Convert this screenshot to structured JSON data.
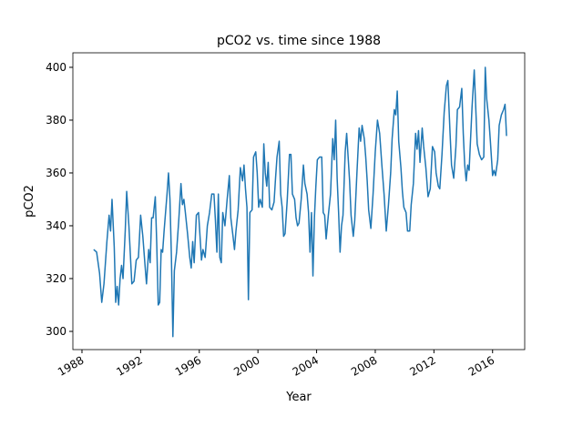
{
  "chart_data": {
    "type": "line",
    "title": "pCO2 vs. time since 1988",
    "xlabel": "Year",
    "ylabel": "pCO2",
    "color": "#1f77b4",
    "x": [
      1988.8,
      1989.0,
      1989.2,
      1989.35,
      1989.5,
      1989.7,
      1989.85,
      1989.95,
      1990.05,
      1990.2,
      1990.3,
      1990.4,
      1990.5,
      1990.6,
      1990.7,
      1990.8,
      1990.95,
      1991.05,
      1991.2,
      1991.4,
      1991.55,
      1991.7,
      1991.85,
      1992.0,
      1992.15,
      1992.3,
      1992.4,
      1992.55,
      1992.65,
      1992.75,
      1992.85,
      1993.0,
      1993.1,
      1993.2,
      1993.3,
      1993.4,
      1993.5,
      1993.6,
      1993.8,
      1993.9,
      1994.0,
      1994.1,
      1994.2,
      1994.3,
      1994.45,
      1994.6,
      1994.75,
      1994.85,
      1994.95,
      1995.05,
      1995.2,
      1995.35,
      1995.45,
      1995.55,
      1995.65,
      1995.8,
      1995.95,
      1996.05,
      1996.15,
      1996.25,
      1996.4,
      1996.55,
      1996.7,
      1996.85,
      1997.0,
      1997.1,
      1997.2,
      1997.3,
      1997.4,
      1997.5,
      1997.6,
      1997.75,
      1997.9,
      1998.05,
      1998.15,
      1998.3,
      1998.4,
      1998.5,
      1998.65,
      1998.8,
      1998.95,
      1999.05,
      1999.15,
      1999.25,
      1999.35,
      1999.45,
      1999.6,
      1999.7,
      1999.85,
      1999.95,
      2000.05,
      2000.15,
      2000.3,
      2000.4,
      2000.5,
      2000.6,
      2000.7,
      2000.8,
      2000.95,
      2001.1,
      2001.2,
      2001.3,
      2001.45,
      2001.55,
      2001.65,
      2001.75,
      2001.85,
      2002.0,
      2002.15,
      2002.25,
      2002.35,
      2002.5,
      2002.6,
      2002.7,
      2002.8,
      2002.95,
      2003.1,
      2003.2,
      2003.35,
      2003.45,
      2003.55,
      2003.65,
      2003.75,
      2003.85,
      2003.95,
      2004.05,
      2004.2,
      2004.35,
      2004.45,
      2004.55,
      2004.65,
      2004.8,
      2004.95,
      2005.1,
      2005.2,
      2005.3,
      2005.4,
      2005.5,
      2005.6,
      2005.7,
      2005.8,
      2005.95,
      2006.05,
      2006.15,
      2006.25,
      2006.35,
      2006.5,
      2006.6,
      2006.75,
      2006.9,
      2007.0,
      2007.1,
      2007.25,
      2007.35,
      2007.45,
      2007.55,
      2007.7,
      2007.85,
      2008.0,
      2008.15,
      2008.3,
      2008.45,
      2008.6,
      2008.75,
      2008.9,
      2009.05,
      2009.15,
      2009.3,
      2009.4,
      2009.5,
      2009.6,
      2009.75,
      2009.85,
      2009.95,
      2010.1,
      2010.2,
      2010.35,
      2010.45,
      2010.6,
      2010.75,
      2010.85,
      2010.95,
      2011.05,
      2011.2,
      2011.3,
      2011.45,
      2011.6,
      2011.75,
      2011.9,
      2012.05,
      2012.15,
      2012.3,
      2012.4,
      2012.55,
      2012.7,
      2012.85,
      2012.95,
      2013.1,
      2013.2,
      2013.35,
      2013.5,
      2013.6,
      2013.75,
      2013.9,
      2014.0,
      2014.1,
      2014.2,
      2014.3,
      2014.4,
      2014.6,
      2014.75,
      2014.85,
      2014.95,
      2015.1,
      2015.25,
      2015.4,
      2015.5,
      2015.6,
      2015.75,
      2015.85,
      2016.0,
      2016.1,
      2016.2,
      2016.35,
      2016.45,
      2016.6,
      2016.75,
      2016.85,
      2016.95
    ],
    "values": [
      331,
      330,
      322,
      311,
      318,
      334,
      344,
      338,
      350,
      332,
      311,
      317,
      310,
      320,
      325,
      320,
      338,
      353,
      340,
      318,
      319,
      327,
      328,
      344,
      336,
      325,
      318,
      331,
      326,
      343,
      343,
      351,
      333,
      310,
      311,
      331,
      330,
      338,
      352,
      360,
      350,
      328,
      298,
      323,
      330,
      342,
      356,
      348,
      350,
      345,
      337,
      328,
      324,
      334,
      326,
      344,
      345,
      336,
      327,
      331,
      328,
      340,
      345,
      352,
      352,
      342,
      330,
      352,
      328,
      326,
      345,
      340,
      350,
      359,
      343,
      336,
      331,
      338,
      346,
      362,
      357,
      363,
      354,
      347,
      312,
      345,
      346,
      366,
      368,
      360,
      347,
      350,
      347,
      371,
      360,
      355,
      364,
      347,
      346,
      349,
      358,
      366,
      372,
      352,
      347,
      336,
      337,
      350,
      367,
      367,
      352,
      350,
      343,
      340,
      341,
      350,
      363,
      356,
      352,
      345,
      330,
      345,
      321,
      343,
      355,
      365,
      366,
      366,
      345,
      344,
      335,
      344,
      352,
      373,
      365,
      380,
      358,
      345,
      330,
      340,
      344,
      368,
      375,
      366,
      357,
      344,
      336,
      342,
      360,
      377,
      372,
      378,
      373,
      366,
      357,
      346,
      339,
      352,
      368,
      380,
      375,
      363,
      352,
      338,
      348,
      360,
      373,
      384,
      382,
      391,
      372,
      362,
      353,
      347,
      345,
      338,
      338,
      348,
      356,
      375,
      369,
      376,
      364,
      377,
      370,
      362,
      351,
      354,
      370,
      368,
      360,
      355,
      354,
      367,
      383,
      393,
      395,
      375,
      363,
      358,
      370,
      384,
      385,
      392,
      375,
      363,
      357,
      363,
      361,
      385,
      399,
      385,
      371,
      367,
      365,
      366,
      400,
      388,
      380,
      372,
      359,
      361,
      359,
      365,
      378,
      382,
      384,
      386,
      374
    ],
    "xlim": [
      1987.38,
      2018.19
    ],
    "xticks": [
      1988,
      1992,
      1996,
      2000,
      2004,
      2008,
      2012,
      2016
    ],
    "ylim": [
      293.1,
      405.5
    ],
    "yticks": [
      300,
      320,
      340,
      360,
      380,
      400
    ]
  }
}
